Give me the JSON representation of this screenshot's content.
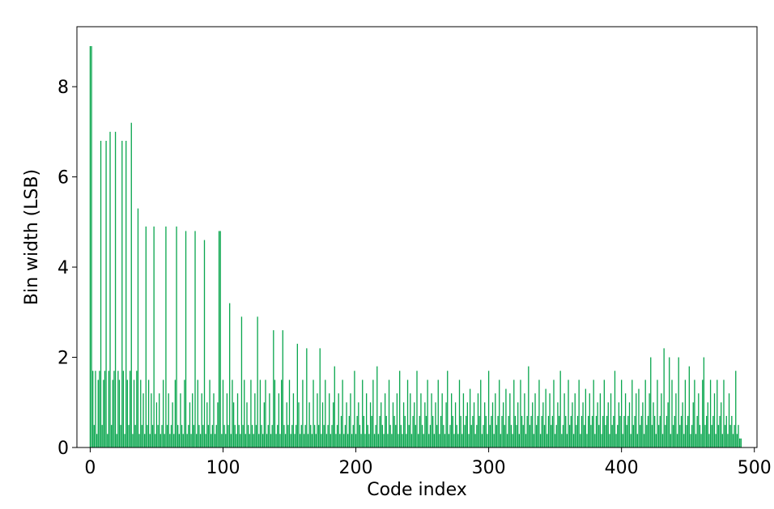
{
  "chart_data": {
    "type": "bar",
    "xlabel": "Code index",
    "ylabel": "Bin width (LSB)",
    "color": "#0aa64e",
    "xlim": [
      -10,
      502
    ],
    "ylim": [
      0,
      9.33
    ],
    "xticks": [
      0,
      100,
      200,
      300,
      400,
      500
    ],
    "yticks": [
      0,
      2,
      4,
      6,
      8
    ],
    "x": [
      0,
      1,
      2,
      3,
      4,
      5,
      6,
      7,
      8,
      9,
      10,
      11,
      12,
      13,
      14,
      15,
      16,
      17,
      18,
      19,
      20,
      21,
      22,
      23,
      24,
      25,
      26,
      27,
      28,
      29,
      30,
      31,
      32,
      33,
      34,
      35,
      36,
      37,
      38,
      39,
      40,
      41,
      42,
      43,
      44,
      45,
      46,
      47,
      48,
      49,
      50,
      51,
      52,
      53,
      54,
      55,
      56,
      57,
      58,
      59,
      60,
      61,
      62,
      63,
      64,
      65,
      66,
      67,
      68,
      69,
      70,
      71,
      72,
      73,
      74,
      75,
      76,
      77,
      78,
      79,
      80,
      81,
      82,
      83,
      84,
      85,
      86,
      87,
      88,
      89,
      90,
      91,
      92,
      93,
      94,
      95,
      96,
      97,
      98,
      99,
      100,
      101,
      102,
      103,
      104,
      105,
      106,
      107,
      108,
      109,
      110,
      111,
      112,
      113,
      114,
      115,
      116,
      117,
      118,
      119,
      120,
      121,
      122,
      123,
      124,
      125,
      126,
      127,
      128,
      129,
      130,
      131,
      132,
      133,
      134,
      135,
      136,
      137,
      138,
      139,
      140,
      141,
      142,
      143,
      144,
      145,
      146,
      147,
      148,
      149,
      150,
      151,
      152,
      153,
      154,
      155,
      156,
      157,
      158,
      159,
      160,
      161,
      162,
      163,
      164,
      165,
      166,
      167,
      168,
      169,
      170,
      171,
      172,
      173,
      174,
      175,
      176,
      177,
      178,
      179,
      180,
      181,
      182,
      183,
      184,
      185,
      186,
      187,
      188,
      189,
      190,
      191,
      192,
      193,
      194,
      195,
      196,
      197,
      198,
      199,
      200,
      201,
      202,
      203,
      204,
      205,
      206,
      207,
      208,
      209,
      210,
      211,
      212,
      213,
      214,
      215,
      216,
      217,
      218,
      219,
      220,
      221,
      222,
      223,
      224,
      225,
      226,
      227,
      228,
      229,
      230,
      231,
      232,
      233,
      234,
      235,
      236,
      237,
      238,
      239,
      240,
      241,
      242,
      243,
      244,
      245,
      246,
      247,
      248,
      249,
      250,
      251,
      252,
      253,
      254,
      255,
      256,
      257,
      258,
      259,
      260,
      261,
      262,
      263,
      264,
      265,
      266,
      267,
      268,
      269,
      270,
      271,
      272,
      273,
      274,
      275,
      276,
      277,
      278,
      279,
      280,
      281,
      282,
      283,
      284,
      285,
      286,
      287,
      288,
      289,
      290,
      291,
      292,
      293,
      294,
      295,
      296,
      297,
      298,
      299,
      300,
      301,
      302,
      303,
      304,
      305,
      306,
      307,
      308,
      309,
      310,
      311,
      312,
      313,
      314,
      315,
      316,
      317,
      318,
      319,
      320,
      321,
      322,
      323,
      324,
      325,
      326,
      327,
      328,
      329,
      330,
      331,
      332,
      333,
      334,
      335,
      336,
      337,
      338,
      339,
      340,
      341,
      342,
      343,
      344,
      345,
      346,
      347,
      348,
      349,
      350,
      351,
      352,
      353,
      354,
      355,
      356,
      357,
      358,
      359,
      360,
      361,
      362,
      363,
      364,
      365,
      366,
      367,
      368,
      369,
      370,
      371,
      372,
      373,
      374,
      375,
      376,
      377,
      378,
      379,
      380,
      381,
      382,
      383,
      384,
      385,
      386,
      387,
      388,
      389,
      390,
      391,
      392,
      393,
      394,
      395,
      396,
      397,
      398,
      399,
      400,
      401,
      402,
      403,
      404,
      405,
      406,
      407,
      408,
      409,
      410,
      411,
      412,
      413,
      414,
      415,
      416,
      417,
      418,
      419,
      420,
      421,
      422,
      423,
      424,
      425,
      426,
      427,
      428,
      429,
      430,
      431,
      432,
      433,
      434,
      435,
      436,
      437,
      438,
      439,
      440,
      441,
      442,
      443,
      444,
      445,
      446,
      447,
      448,
      449,
      450,
      451,
      452,
      453,
      454,
      455,
      456,
      457,
      458,
      459,
      460,
      461,
      462,
      463,
      464,
      465,
      466,
      467,
      468,
      469,
      470,
      471,
      472,
      473,
      474,
      475,
      476,
      477,
      478,
      479,
      480,
      481,
      482,
      483,
      484,
      485,
      486,
      487,
      488,
      489,
      490
    ],
    "values": [
      8.9,
      8.9,
      1.7,
      0.5,
      1.7,
      0.3,
      1.5,
      1.7,
      6.8,
      0.5,
      1.5,
      1.7,
      6.8,
      0.3,
      1.7,
      7.0,
      0.5,
      1.5,
      1.7,
      7.0,
      0.3,
      1.7,
      1.5,
      0.5,
      6.8,
      1.7,
      0.3,
      6.8,
      1.5,
      0.5,
      1.7,
      7.2,
      0.3,
      1.5,
      0.5,
      1.7,
      5.3,
      0.3,
      1.5,
      0.5,
      1.2,
      0.3,
      4.9,
      0.5,
      1.5,
      0.3,
      1.2,
      0.5,
      4.9,
      0.3,
      1.0,
      0.5,
      1.2,
      0.3,
      0.5,
      1.5,
      0.3,
      4.9,
      0.5,
      1.2,
      0.3,
      0.5,
      1.0,
      0.3,
      1.5,
      4.9,
      0.5,
      0.3,
      1.2,
      0.5,
      0.3,
      1.5,
      4.8,
      0.3,
      0.5,
      1.0,
      0.3,
      1.2,
      0.5,
      4.8,
      0.3,
      1.5,
      0.5,
      0.3,
      1.2,
      0.5,
      4.6,
      0.3,
      1.0,
      0.5,
      1.5,
      0.3,
      0.5,
      1.2,
      0.3,
      0.5,
      1.0,
      4.8,
      4.8,
      0.3,
      1.5,
      0.5,
      0.3,
      1.2,
      0.5,
      3.2,
      0.3,
      1.5,
      1.0,
      0.5,
      0.3,
      1.2,
      0.5,
      0.3,
      2.9,
      0.5,
      1.5,
      0.3,
      1.0,
      0.5,
      0.3,
      1.5,
      0.5,
      0.3,
      1.2,
      0.5,
      2.9,
      0.3,
      1.5,
      0.5,
      0.3,
      1.0,
      1.5,
      0.3,
      0.5,
      1.2,
      0.3,
      0.5,
      2.6,
      1.5,
      0.3,
      0.5,
      1.2,
      0.3,
      1.5,
      2.6,
      0.5,
      0.3,
      1.0,
      0.5,
      1.5,
      0.3,
      0.5,
      1.2,
      0.3,
      0.5,
      2.3,
      1.0,
      0.3,
      0.5,
      1.5,
      0.3,
      0.5,
      2.2,
      0.3,
      1.0,
      0.5,
      0.3,
      1.5,
      0.5,
      0.3,
      1.2,
      0.5,
      2.2,
      0.3,
      1.0,
      0.5,
      1.5,
      0.3,
      0.5,
      1.2,
      0.3,
      0.5,
      1.0,
      1.8,
      0.3,
      0.5,
      1.2,
      0.3,
      0.7,
      1.5,
      0.3,
      0.5,
      1.0,
      0.3,
      0.7,
      1.2,
      0.3,
      0.5,
      1.7,
      0.3,
      0.7,
      1.0,
      0.5,
      0.3,
      1.5,
      0.7,
      0.3,
      1.2,
      0.5,
      0.3,
      1.0,
      0.7,
      1.5,
      0.3,
      0.5,
      1.8,
      0.3,
      0.7,
      1.0,
      0.5,
      0.3,
      1.2,
      0.7,
      0.3,
      1.5,
      0.5,
      0.3,
      1.0,
      0.7,
      0.5,
      1.2,
      0.3,
      1.7,
      0.5,
      0.3,
      1.0,
      0.7,
      0.3,
      1.5,
      0.5,
      1.2,
      0.3,
      0.7,
      1.0,
      0.5,
      1.7,
      0.3,
      0.7,
      1.2,
      0.5,
      0.3,
      1.0,
      0.7,
      1.5,
      0.3,
      0.5,
      1.2,
      0.7,
      0.3,
      1.0,
      0.5,
      1.5,
      0.3,
      0.7,
      1.2,
      0.5,
      0.3,
      1.0,
      1.7,
      0.3,
      0.5,
      1.2,
      0.7,
      0.3,
      1.0,
      0.5,
      0.3,
      1.5,
      0.7,
      0.3,
      1.2,
      0.5,
      0.7,
      1.0,
      0.3,
      1.3,
      0.5,
      0.7,
      1.0,
      0.3,
      0.5,
      1.2,
      0.7,
      1.5,
      0.3,
      0.5,
      1.0,
      0.7,
      0.3,
      1.7,
      0.5,
      0.7,
      1.0,
      0.3,
      1.2,
      0.5,
      0.7,
      1.5,
      0.3,
      0.7,
      1.0,
      0.5,
      1.3,
      0.3,
      0.7,
      1.2,
      0.5,
      0.3,
      1.5,
      0.7,
      0.5,
      1.0,
      0.3,
      1.5,
      0.7,
      0.5,
      1.2,
      0.3,
      0.7,
      1.8,
      0.5,
      0.7,
      1.0,
      0.3,
      1.2,
      0.5,
      0.7,
      1.5,
      0.3,
      0.7,
      1.0,
      0.5,
      1.3,
      0.3,
      0.7,
      1.2,
      0.5,
      0.7,
      1.5,
      0.3,
      0.5,
      1.0,
      0.7,
      1.7,
      0.3,
      0.5,
      1.2,
      0.7,
      0.3,
      1.5,
      0.5,
      0.7,
      1.0,
      0.3,
      1.2,
      0.5,
      0.7,
      1.5,
      0.3,
      0.7,
      1.0,
      0.5,
      1.3,
      0.3,
      0.7,
      1.2,
      0.5,
      0.7,
      1.5,
      0.3,
      0.7,
      1.0,
      0.5,
      1.2,
      0.3,
      0.7,
      1.5,
      0.5,
      0.7,
      1.0,
      0.3,
      1.2,
      0.5,
      0.7,
      1.7,
      0.3,
      0.5,
      1.0,
      0.7,
      1.5,
      0.3,
      0.7,
      1.2,
      0.5,
      0.7,
      1.0,
      0.3,
      1.5,
      0.5,
      0.7,
      1.2,
      0.3,
      1.3,
      0.5,
      0.7,
      1.0,
      0.3,
      1.5,
      0.5,
      0.7,
      1.2,
      2.0,
      0.5,
      1.0,
      0.7,
      0.3,
      1.5,
      0.5,
      0.7,
      1.2,
      0.3,
      2.2,
      0.5,
      0.7,
      1.0,
      2.0,
      0.3,
      1.5,
      0.5,
      0.7,
      1.2,
      0.3,
      2.0,
      0.5,
      0.7,
      1.0,
      0.3,
      1.5,
      0.5,
      0.7,
      1.8,
      0.3,
      0.5,
      1.0,
      1.5,
      0.3,
      0.7,
      1.2,
      0.5,
      0.3,
      1.5,
      2.0,
      0.5,
      0.7,
      1.0,
      0.3,
      1.5,
      0.5,
      0.7,
      1.2,
      0.3,
      1.5,
      0.5,
      0.7,
      1.0,
      0.3,
      1.5,
      0.5,
      0.7,
      0.3,
      1.2,
      0.5,
      0.7,
      0.3,
      0.5,
      1.7,
      0.3,
      0.5,
      0.2,
      0.2
    ]
  }
}
